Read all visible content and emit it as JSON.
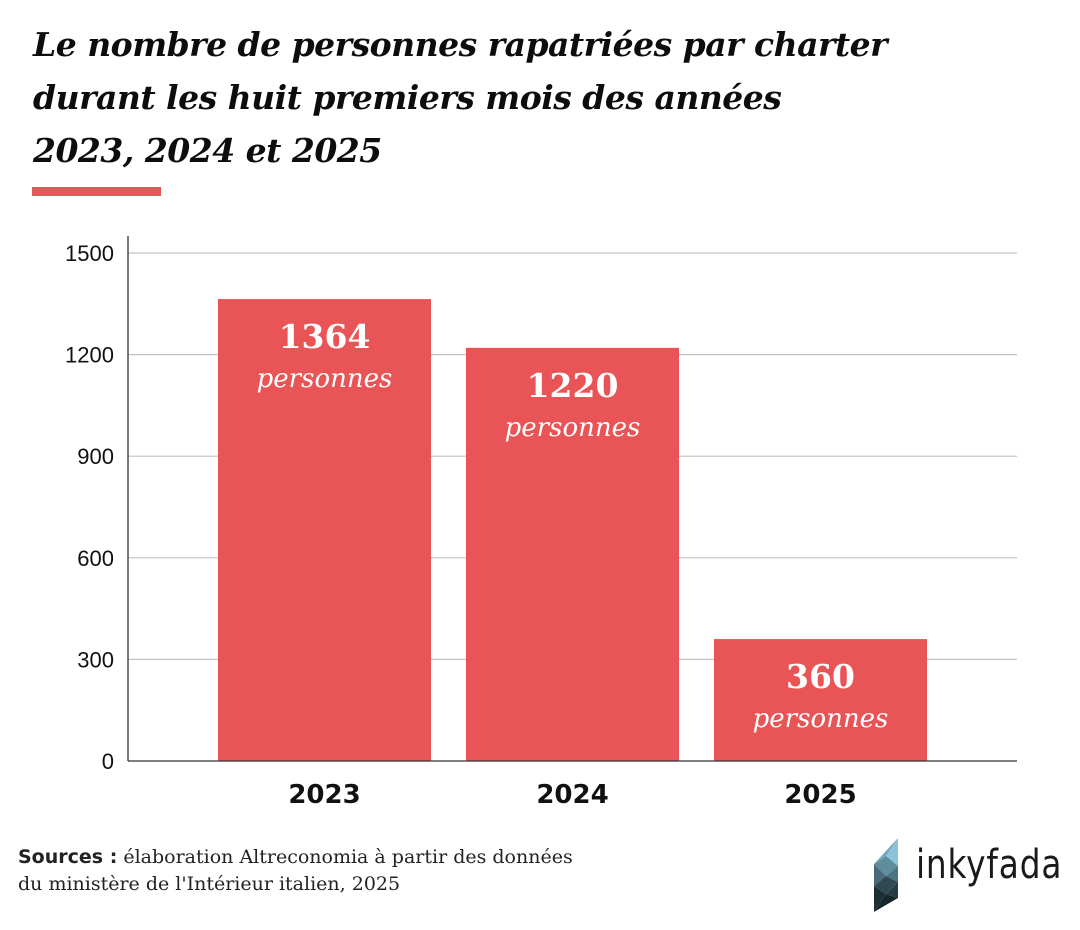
{
  "title_lines": [
    "Le nombre de personnes rapatriées par charter",
    "durant les huit premiers mois des années",
    "2023, 2024 et 2025"
  ],
  "colors": {
    "accent": "#E95456",
    "bar": "#E95456",
    "grid": "#c4c4c4",
    "axis": "#333333"
  },
  "chart_data": {
    "type": "bar",
    "title": "Le nombre de personnes rapatriées par charter durant les huit premiers mois des années 2023, 2024 et 2025",
    "categories": [
      "2023",
      "2024",
      "2025"
    ],
    "values": [
      1364,
      1220,
      360
    ],
    "value_labels": [
      "1364",
      "1220",
      "360"
    ],
    "unit_label": "personnes",
    "xlabel": "",
    "ylabel": "",
    "ylim": [
      0,
      1500
    ],
    "yticks": [
      0,
      300,
      600,
      900,
      1200,
      1500
    ],
    "ytick_labels": [
      "0",
      "300",
      "600",
      "900",
      "1200",
      "1500"
    ],
    "grid": true,
    "legend": "none"
  },
  "source": {
    "label": "Sources :",
    "text_line1": " élaboration Altreconomia à partir des données",
    "text_line2": "du ministère de l'Intérieur italien, 2025"
  },
  "logo": {
    "name": "inkyfada"
  }
}
